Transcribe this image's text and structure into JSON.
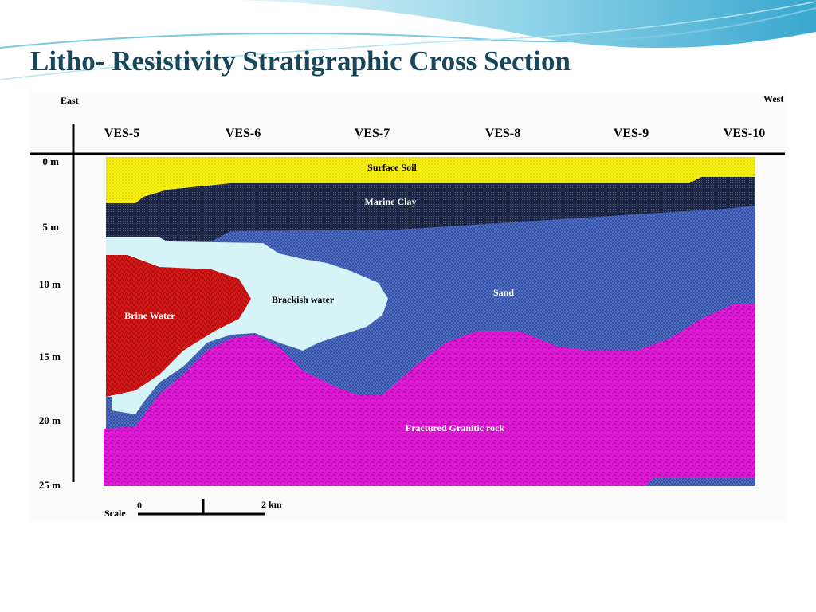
{
  "title": "Litho- Resistivity Stratigraphic Cross Section",
  "directions": {
    "east": "East",
    "west": "West"
  },
  "stations": [
    "VES-5",
    "VES-6",
    "VES-7",
    "VES-8",
    "VES-9",
    "VES-10"
  ],
  "depths": [
    "0 m",
    "5 m",
    "10 m",
    "15 m",
    "20 m",
    "25 m"
  ],
  "layers": {
    "surface_soil": "Surface Soil",
    "marine_clay": "Marine Clay",
    "sand": "Sand",
    "brackish_water": "Brackish water",
    "brine_water": "Brine Water",
    "granitic_rock": "Fractured Granitic rock"
  },
  "scale": {
    "label": "Scale",
    "start": "0",
    "end": "2 km"
  }
}
